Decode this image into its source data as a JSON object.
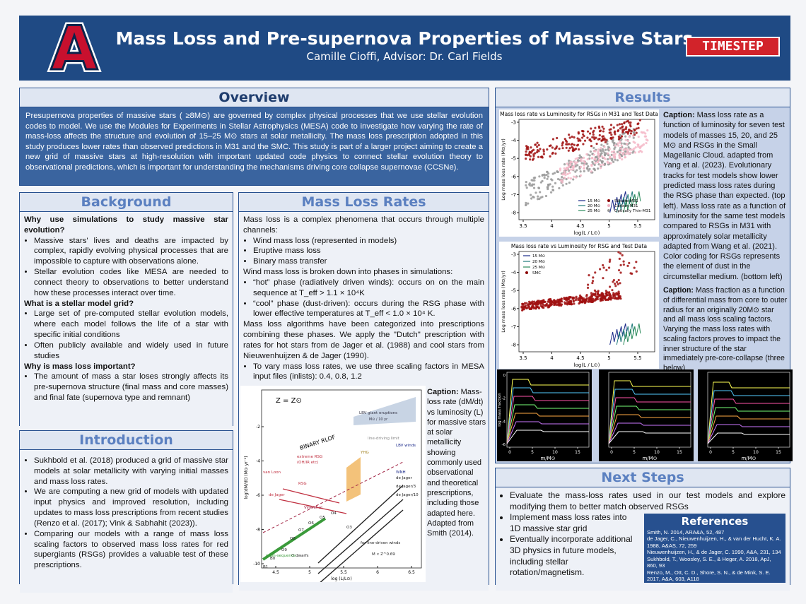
{
  "header": {
    "title": "Mass Loss and Pre-supernova Properties of Massive Stars",
    "subtitle": "Camille Cioffi, Advisor: Dr. Carl Fields",
    "logo_letter": "A",
    "badge": "TIMESTEP"
  },
  "overview": {
    "title": "Overview",
    "body": "Presupernova properties of massive stars ( ≥8M⊙) are governed by complex physical processes that we use stellar evolution codes to model. We use the Modules for Experiments in Stellar Astrophysics (MESA) code to investigate how varying the rate of mass-loss affects the structure and evolution of 15–25 M⊙ stars at solar metallicity. The mass loss prescription adopted in this study produces lower rates than observed predictions in M31 and the SMC. This study is part of a larger project aiming to create a new grid of massive stars at high-resolution with important updated code physics to connect stellar evolution theory to observational predictions, which is important for understanding the mechanisms driving core collapse supernovae (CCSNe)."
  },
  "background": {
    "title": "Background",
    "items": [
      {
        "kind": "heading",
        "text": "Why use simulations to study massive star evolution?"
      },
      {
        "kind": "bullet",
        "text": "Massive stars' lives and deaths are impacted by complex, rapidly evolving physical processes that are impossible to capture with observations alone."
      },
      {
        "kind": "bullet",
        "text": "Stellar evolution codes like MESA are needed to connect theory to observations to better understand how these processes interact over time."
      },
      {
        "kind": "heading",
        "text": "What is a stellar model grid?"
      },
      {
        "kind": "bullet",
        "text": "Large set of pre-computed stellar evolution models, where each model follows the life of a star with specific initial conditions"
      },
      {
        "kind": "bullet",
        "text": "Often publicly available and widely used in future studies"
      },
      {
        "kind": "heading",
        "text": "Why is mass loss important?"
      },
      {
        "kind": "bullet",
        "text": "The amount of mass a star loses strongly affects its pre-supernova structure (final mass and core masses) and final fate (supernova type and remnant)"
      }
    ]
  },
  "introduction": {
    "title": "Introduction",
    "items": [
      {
        "kind": "bullet",
        "text": "Sukhbold et al. (2018) produced a grid of massive star models at solar metallicity with varying initial masses and mass loss rates."
      },
      {
        "kind": "bullet",
        "text": "We are computing a new grid of models with updated input physics and improved resolution, including updates to mass loss prescriptions from recent studies (Renzo et al. (2017); Vink & Sabhahit (2023))."
      },
      {
        "kind": "bullet",
        "text": "Comparing our models with a range of mass loss scaling factors to observed mass loss rates for red supergiants (RSGs) provides a valuable test of these prescriptions."
      }
    ]
  },
  "mass_loss_rates": {
    "title": "Mass Loss Rates",
    "items": [
      {
        "kind": "text",
        "text": "Mass loss is a complex phenomena that occurs through multiple channels:"
      },
      {
        "kind": "bullet",
        "text": "Wind mass loss (represented in models)"
      },
      {
        "kind": "bullet",
        "text": "Eruptive mass loss"
      },
      {
        "kind": "bullet",
        "text": "Binary mass transfer"
      },
      {
        "kind": "text",
        "text": "Wind mass loss is broken down into phases in simulations:"
      },
      {
        "kind": "bullet",
        "text": "“hot” phase (radiatively driven winds): occurs on on the main sequence at T_eff > 1.1 × 10⁴K"
      },
      {
        "kind": "bullet",
        "text": "“cool” phase (dust-driven): occurs during the RSG phase with lower effective temperatures at T_eff < 1.0 × 10⁴ K."
      },
      {
        "kind": "text",
        "text": "Mass loss algorithms have been categorized into prescriptions combining these phases. We apply the \"Dutch\" prescription with rates for hot stars from de Jager et al. (1988) and cool stars from Nieuwenhuijzen & de Jager (1990)."
      },
      {
        "kind": "bullet",
        "text": "To vary mass loss rates, we use three scaling factors in MESA input files (inlists): 0.4, 0.8, 1.2"
      }
    ],
    "caption_label": "Caption:",
    "caption": "Mass-loss rate (dM/dt) vs luminosity (L) for massive stars at solar metallicity showing commonly used observational and theoretical prescriptions, including those adapted here. Adapted from Smith (2014).",
    "figure": {
      "metallicity": "Z = Z⊙",
      "eruptions": "LBV giant eruptions",
      "eruptions_sub": "M⊙ / 10 yr",
      "rlof": "BINARY RLOF",
      "labels": [
        "extreme RSG",
        "(OH/IR etc)",
        "RSG",
        "van Loon",
        "de Jager",
        "YHG",
        "LBV winds",
        "WNH",
        "de Jager",
        "de Jager/3",
        "de Jager/10",
        "line-driving limit",
        "Vink et al.",
        "B1",
        "B0",
        "O9",
        "O8",
        "O7",
        "O6",
        "O5",
        "O4",
        "O3",
        "O dwarfs",
        "for line-driven winds",
        "M ∝ Z^0.69",
        "main-sequence"
      ],
      "xlabel": "log (L/L⊙)",
      "ylabel": "log(dM/dt) (M⊙ yr⁻¹)",
      "xticks": [
        4.5,
        5.0,
        5.5,
        6.0,
        6.5
      ],
      "yticks": [
        -2,
        -4,
        -6,
        -8,
        -10
      ]
    }
  },
  "results": {
    "title": "Results",
    "caption1_label": "Caption:",
    "caption1": "Mass loss rate as a function of luminosity for seven test models of masses 15, 20, and 25 M⊙ and RSGs in the Small Magellanic Cloud. adapted from Yang et al. (2023). Evolutionary tracks for test models show lower predicted mass loss rates during the RSG phase than expected. (top left). Mass loss rate as a function of luminosity for the same test models compared to RSGs in M31 with approximately solar metallicity adapted from Wang et al. (2021). Color coding for RSGs represents the element of dust in the circumstellar medium. (bottom left)",
    "caption2_label": "Caption:",
    "caption2": "Mass fraction as a function of differential mass from core to outer radius for an originally 20M⊙ star and all mass loss scaling factors. Varying the mass loss rates with scaling factors proves to impact the inner structure of the star immediately pre-core-collapse (three below)",
    "plot_m31": {
      "title": "Mass loss rate vs Luminosity for RSGs in M31 and Test Data",
      "xlabel": "log(L / L⊙)",
      "ylabel": "Log mass loss rate (M⊙/yr)",
      "xticks": [
        3.5,
        4.0,
        4.5,
        5.0,
        5.5
      ],
      "yticks": [
        -3,
        -4,
        -5,
        -6,
        -7,
        -8
      ],
      "legend": [
        "15 M⊙",
        "20 M⊙",
        "25 M⊙",
        "Silicate-M31",
        "Carbon-M31",
        "Optically Thin-M31"
      ]
    },
    "plot_smc": {
      "title": "Mass loss rate vs Luminosity for RSG and Test Data",
      "xlabel": "log(L / L⊙)",
      "ylabel": "Log mass loss rate (M⊙/yr)",
      "xticks": [
        3.5,
        4.0,
        4.5,
        5.0,
        5.5
      ],
      "yticks": [
        -3,
        -4,
        -5,
        -6,
        -7,
        -8
      ],
      "legend": [
        "15 M⊙",
        "20 M⊙",
        "25 M⊙",
        "SMC"
      ]
    },
    "mesa": {
      "ylabel": "log mass fraction",
      "xlabel": "m/M⊙",
      "xticks": [
        0,
        5,
        10,
        15
      ],
      "yticks": [
        0,
        -2,
        -4,
        -6
      ]
    }
  },
  "next_steps": {
    "title": "Next Steps",
    "items": [
      "Evaluate the mass-loss rates used in our test models and explore modifying them to better match observed RSGs",
      "Implement mass loss rates into 1D massive star grid",
      "Eventually incorporate additional 3D physics in future models, including stellar rotation/magnetism."
    ]
  },
  "references": {
    "title": "References",
    "entries": [
      "Smith, N. 2014, ARA&A, 52, 487",
      "de Jager, C., Nieuwenhuijzen, H., & van der Hucht, K. A. 1988, A&AS, 72, 259",
      "Nieuwenhuijzen, H., & de Jager, C. 1990, A&A, 231, 134",
      "Sukhbold, T., Woosley, S. E., & Heger, A. 2018, ApJ, 860, 93",
      "Renzo, M., Ott, C. D., Shore, S. N., & de Mink, S. E. 2017, A&A, 603, A118"
    ]
  }
}
